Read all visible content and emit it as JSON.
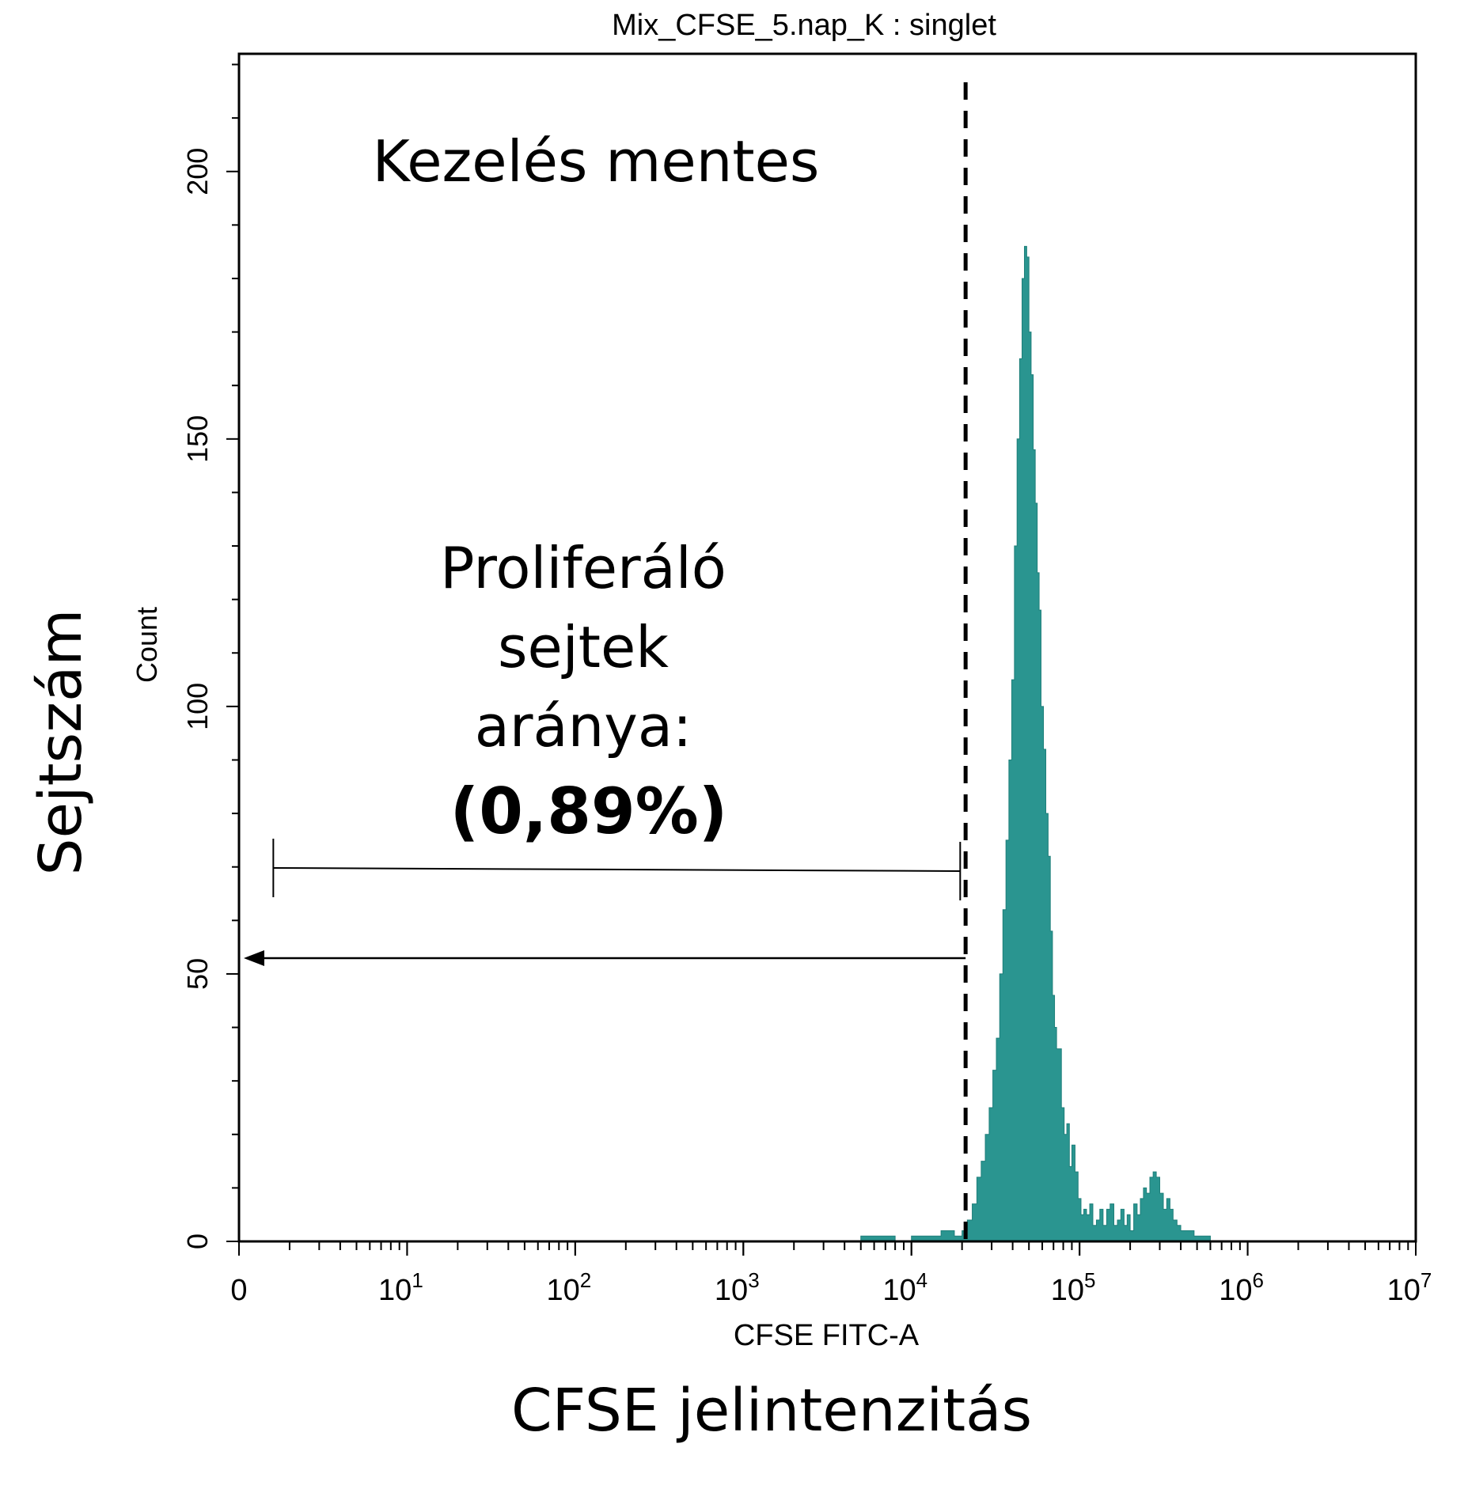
{
  "chart_data": {
    "type": "histogram",
    "title": "Mix_CFSE_5.nap_K : singlet",
    "xlabel": "CFSE FITC-A",
    "ylabel": "Count",
    "outer_xlabel": "CFSE jelintenzitás",
    "outer_ylabel": "Sejtszám",
    "x_scale": "log",
    "xlim": [
      1,
      10000000
    ],
    "ylim": [
      0,
      222
    ],
    "yticks": [
      {
        "value": 0,
        "label": "0"
      },
      {
        "value": 50,
        "label": "50"
      },
      {
        "value": 100,
        "label": "100"
      },
      {
        "value": 150,
        "label": "150"
      },
      {
        "value": 200,
        "label": "200"
      }
    ],
    "xticks": [
      {
        "base": "0",
        "exp": ""
      },
      {
        "base": "10",
        "exp": "1"
      },
      {
        "base": "10",
        "exp": "2"
      },
      {
        "base": "10",
        "exp": "3"
      },
      {
        "base": "10",
        "exp": "4"
      },
      {
        "base": "10",
        "exp": "5"
      },
      {
        "base": "10",
        "exp": "6"
      },
      {
        "base": "10",
        "exp": "7"
      }
    ],
    "grid": false,
    "fill_color": "#2a9590",
    "series": [
      {
        "x": [
          2500,
          5000,
          8000,
          10000,
          12000,
          15000,
          18000,
          20000,
          21500,
          23000,
          24500,
          26000,
          27500,
          29000,
          30500,
          32000,
          33500,
          35000,
          36500,
          38000,
          39500,
          41000,
          42500,
          44000,
          45500,
          47000,
          48500,
          50000,
          51500,
          53000,
          54500,
          56000,
          57500,
          59000,
          61000,
          63000,
          65000,
          67000,
          69000,
          71000,
          73000,
          75000,
          78000,
          81000,
          84000,
          87000,
          90000,
          94000,
          98000,
          102000,
          106000,
          110000,
          115000,
          120000,
          126000,
          132000,
          138000,
          145000,
          152000,
          160000,
          168000,
          176000,
          184000,
          192000,
          200000,
          210000,
          220000,
          230000,
          240000,
          250000,
          262000,
          274000,
          286000,
          300000,
          315000,
          330000,
          345000,
          360000,
          380000,
          400000,
          425000,
          450000,
          480000,
          510000,
          550000,
          600000
        ],
        "y": [
          0,
          1,
          0,
          1,
          1,
          2,
          1,
          2,
          4,
          7,
          12,
          15,
          20,
          25,
          32,
          38,
          50,
          62,
          75,
          90,
          105,
          130,
          150,
          165,
          180,
          186,
          184,
          170,
          162,
          148,
          138,
          125,
          118,
          100,
          92,
          80,
          72,
          58,
          46,
          40,
          36,
          36,
          25,
          20,
          22,
          14,
          18,
          13,
          8,
          5,
          6,
          5,
          7,
          3,
          4,
          6,
          3,
          6,
          7,
          3,
          4,
          6,
          3,
          5,
          2,
          7,
          5,
          8,
          10,
          9,
          12,
          13,
          12,
          9,
          6,
          8,
          6,
          4,
          3,
          2,
          2,
          2,
          1,
          1,
          1,
          0
        ]
      }
    ],
    "gate": {
      "threshold_x": 21000,
      "gate_start_x": 1.6,
      "gate_end_x": 19500,
      "label_lines": [
        "Proliferáló",
        "sejtek",
        "aránya:"
      ],
      "value": "(0,89%)"
    },
    "annotations": {
      "condition": "Kezelés mentes"
    }
  }
}
